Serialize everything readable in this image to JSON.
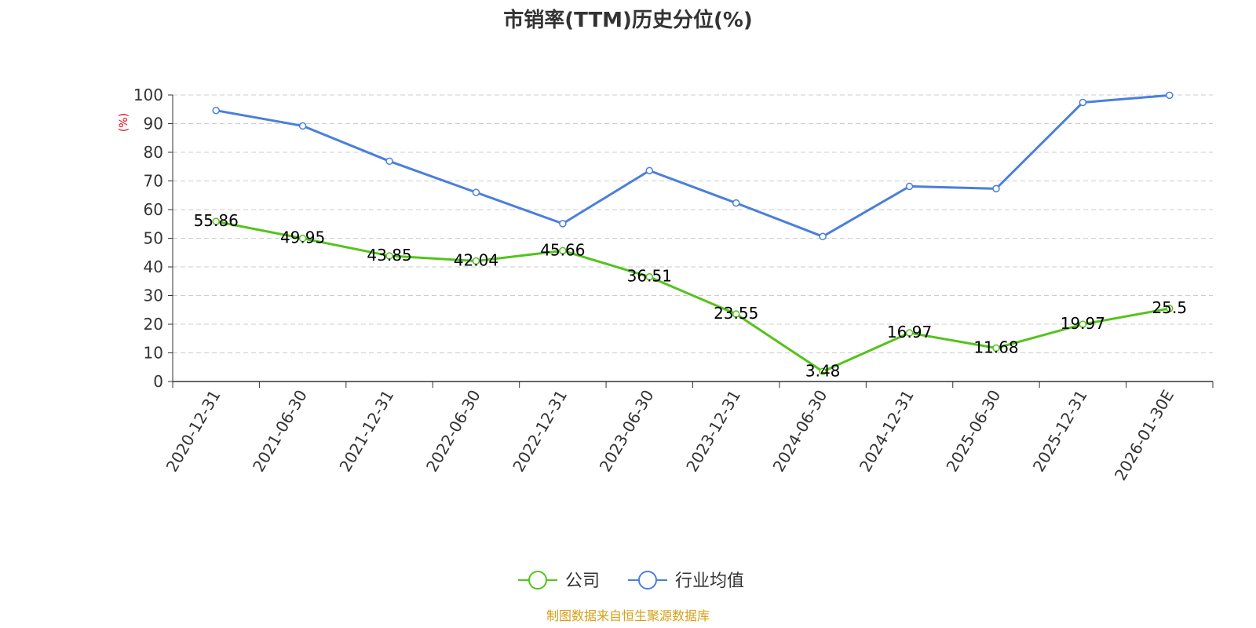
{
  "chart_data": {
    "type": "line",
    "title": "市销率(TTM)历史分位(%)",
    "ylabel": "(%)",
    "ylim": [
      0,
      100
    ],
    "yticks": [
      0,
      10,
      20,
      30,
      40,
      50,
      60,
      70,
      80,
      90,
      100
    ],
    "grid": true,
    "legend_position": "bottom-center",
    "categories": [
      "2020-12-31",
      "2021-06-30",
      "2021-12-31",
      "2022-06-30",
      "2022-12-31",
      "2023-06-30",
      "2023-12-31",
      "2024-06-30",
      "2024-12-31",
      "2025-06-30",
      "2025-12-31",
      "2026-01-30E"
    ],
    "series": [
      {
        "name": "公司",
        "color": "#52c41a",
        "show_labels": true,
        "values": [
          55.86,
          49.95,
          43.85,
          42.04,
          45.66,
          36.51,
          23.55,
          3.48,
          16.97,
          11.68,
          19.97,
          25.5
        ]
      },
      {
        "name": "行业均值",
        "color": "#4a7fdb",
        "show_labels": false,
        "values": [
          94.6,
          89.2,
          76.9,
          66.0,
          55.1,
          73.6,
          62.3,
          50.6,
          68.1,
          67.3,
          97.4,
          99.9
        ]
      }
    ],
    "source": "制图数据来自恒生聚源数据库",
    "ylabel_color": "#e60012",
    "source_color": "#d4a017"
  }
}
